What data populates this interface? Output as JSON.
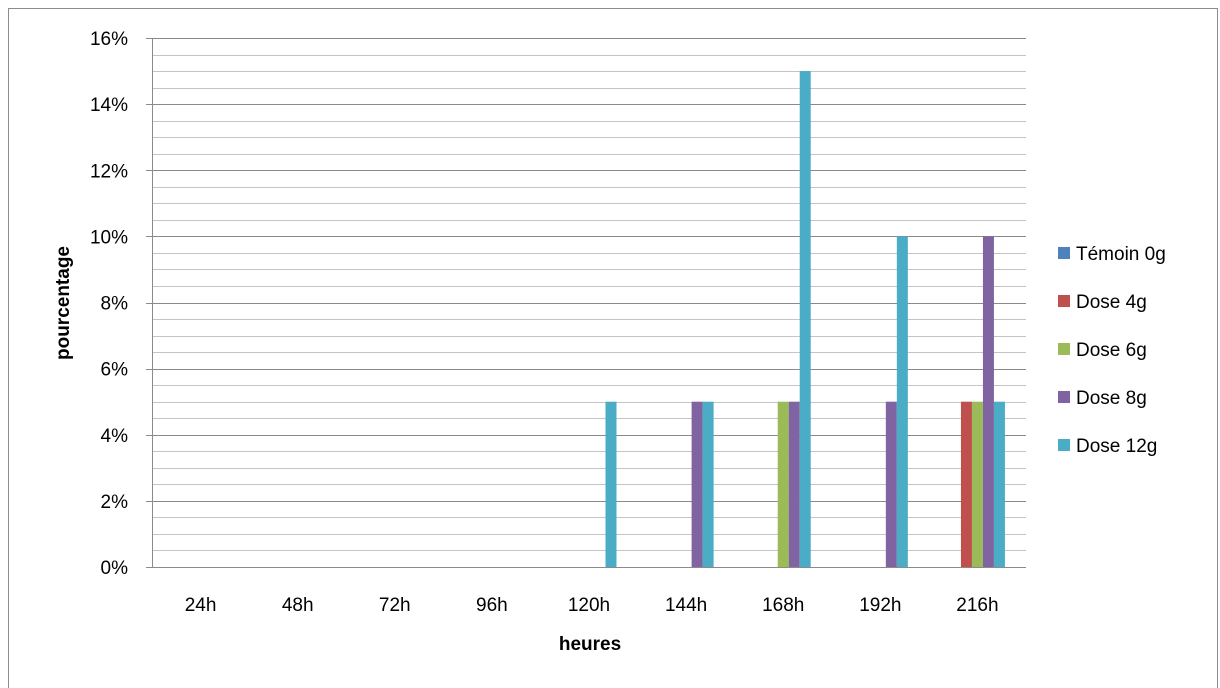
{
  "chart_data": {
    "type": "bar",
    "title": "",
    "xlabel": "heures",
    "ylabel": "pourcentage",
    "categories": [
      "24h",
      "48h",
      "72h",
      "96h",
      "120h",
      "144h",
      "168h",
      "192h",
      "216h"
    ],
    "ylim": [
      0,
      16
    ],
    "y_ticks": [
      "0%",
      "2%",
      "4%",
      "6%",
      "8%",
      "10%",
      "12%",
      "14%",
      "16%"
    ],
    "y_unit": "%",
    "grid": true,
    "legend_position": "right",
    "series": [
      {
        "name": "Témoin 0g",
        "color": "#4f81bd",
        "values": [
          0,
          0,
          0,
          0,
          0,
          0,
          0,
          0,
          0
        ]
      },
      {
        "name": "Dose 4g",
        "color": "#c0504d",
        "values": [
          0,
          0,
          0,
          0,
          0,
          0,
          0,
          0,
          5
        ]
      },
      {
        "name": "Dose 6g",
        "color": "#9bbb59",
        "values": [
          0,
          0,
          0,
          0,
          0,
          0,
          5,
          0,
          5
        ]
      },
      {
        "name": "Dose 8g",
        "color": "#8064a2",
        "values": [
          0,
          0,
          0,
          0,
          0,
          5,
          5,
          5,
          10
        ]
      },
      {
        "name": "Dose 12g",
        "color": "#4bacc6",
        "values": [
          0,
          0,
          0,
          0,
          5,
          5,
          15,
          10,
          5
        ]
      }
    ]
  }
}
